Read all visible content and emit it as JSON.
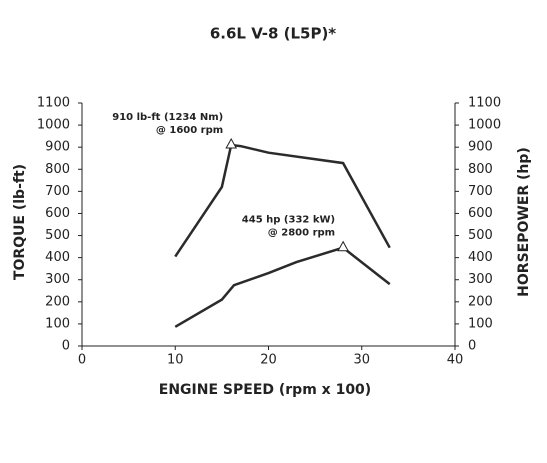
{
  "chart_data": {
    "type": "line",
    "title": "6.6L V-8 (L5P)*",
    "xlabel": "ENGINE SPEED (rpm x 100)",
    "ylabel": "TORQUE (lb-ft)",
    "y2label": "HORSEPOWER (hp)",
    "xlim": [
      0,
      40
    ],
    "xticks": [
      0,
      10,
      20,
      30,
      40
    ],
    "ylim": [
      0,
      1100
    ],
    "yticks": [
      0,
      100,
      200,
      300,
      400,
      500,
      600,
      700,
      800,
      900,
      1000,
      1100
    ],
    "y2lim": [
      0,
      1100
    ],
    "y2ticks": [
      0,
      100,
      200,
      300,
      400,
      500,
      600,
      700,
      800,
      900,
      1000,
      1100
    ],
    "color": "#2b2b2b",
    "series": [
      {
        "x": [
          10,
          15,
          16,
          17,
          20,
          28,
          33
        ],
        "values": [
          405,
          720,
          910,
          905,
          875,
          828,
          445
        ]
      },
      {
        "axis": "y2",
        "x": [
          10,
          15,
          16.3,
          20,
          23,
          28,
          33
        ],
        "values": [
          87,
          210,
          275,
          330,
          380,
          445,
          280
        ]
      }
    ],
    "annotations": [
      {
        "lines": [
          "910 lb-ft (1234 Nm)",
          "@ 1600 rpm"
        ],
        "series": 0,
        "point": 2
      },
      {
        "lines": [
          "445 hp (332 kW)",
          "@ 2800 rpm"
        ],
        "series": 1,
        "point": 5
      }
    ]
  }
}
